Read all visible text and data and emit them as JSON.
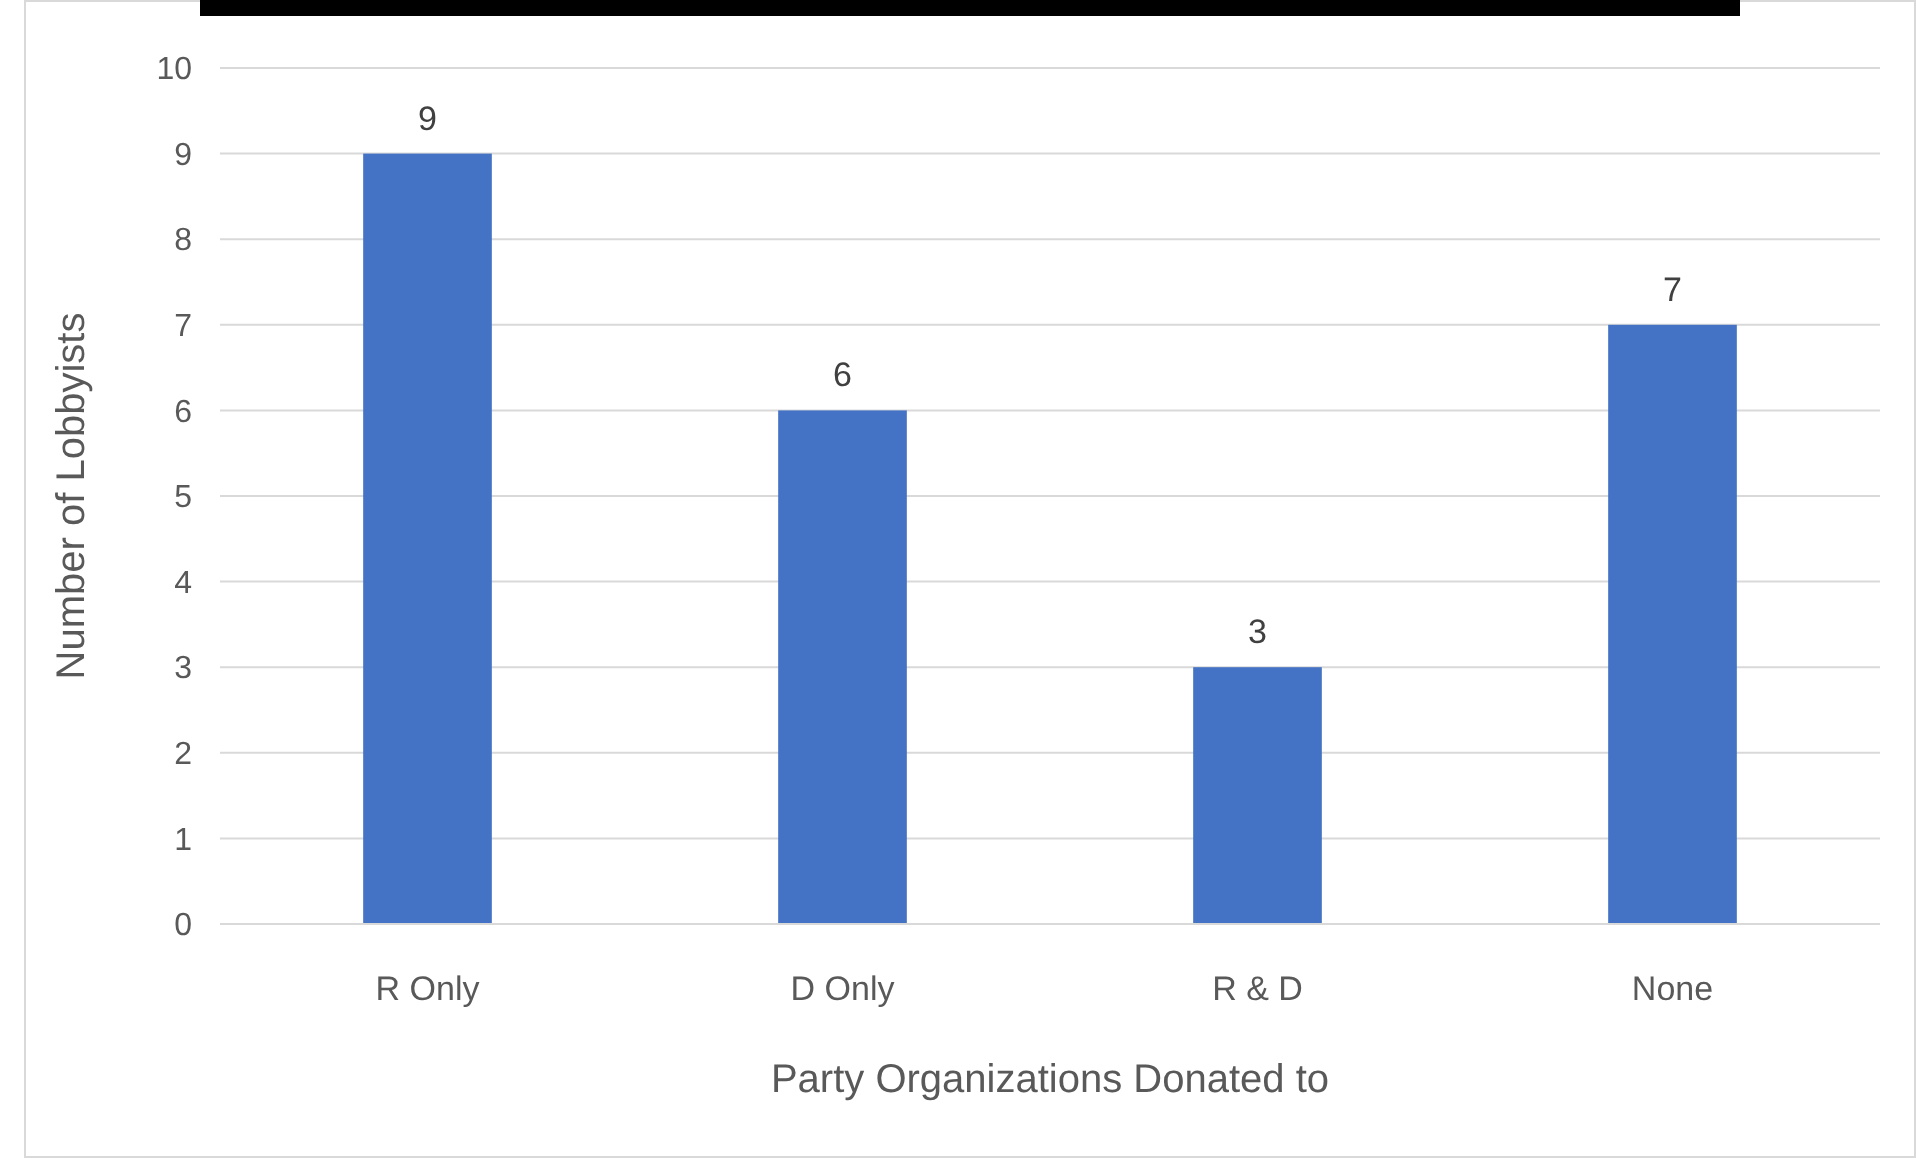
{
  "chart_data": {
    "type": "bar",
    "categories": [
      "R Only",
      "D Only",
      "R & D",
      "None"
    ],
    "values": [
      9,
      6,
      3,
      7
    ],
    "color": "#4472c4",
    "xlabel": "Party Organizations Donated to",
    "ylabel": "Number of Lobbyists",
    "ylim": [
      0,
      10
    ],
    "yticks": [
      0,
      1,
      2,
      3,
      4,
      5,
      6,
      7,
      8,
      9,
      10
    ],
    "grid": "y",
    "data_labels": true
  }
}
